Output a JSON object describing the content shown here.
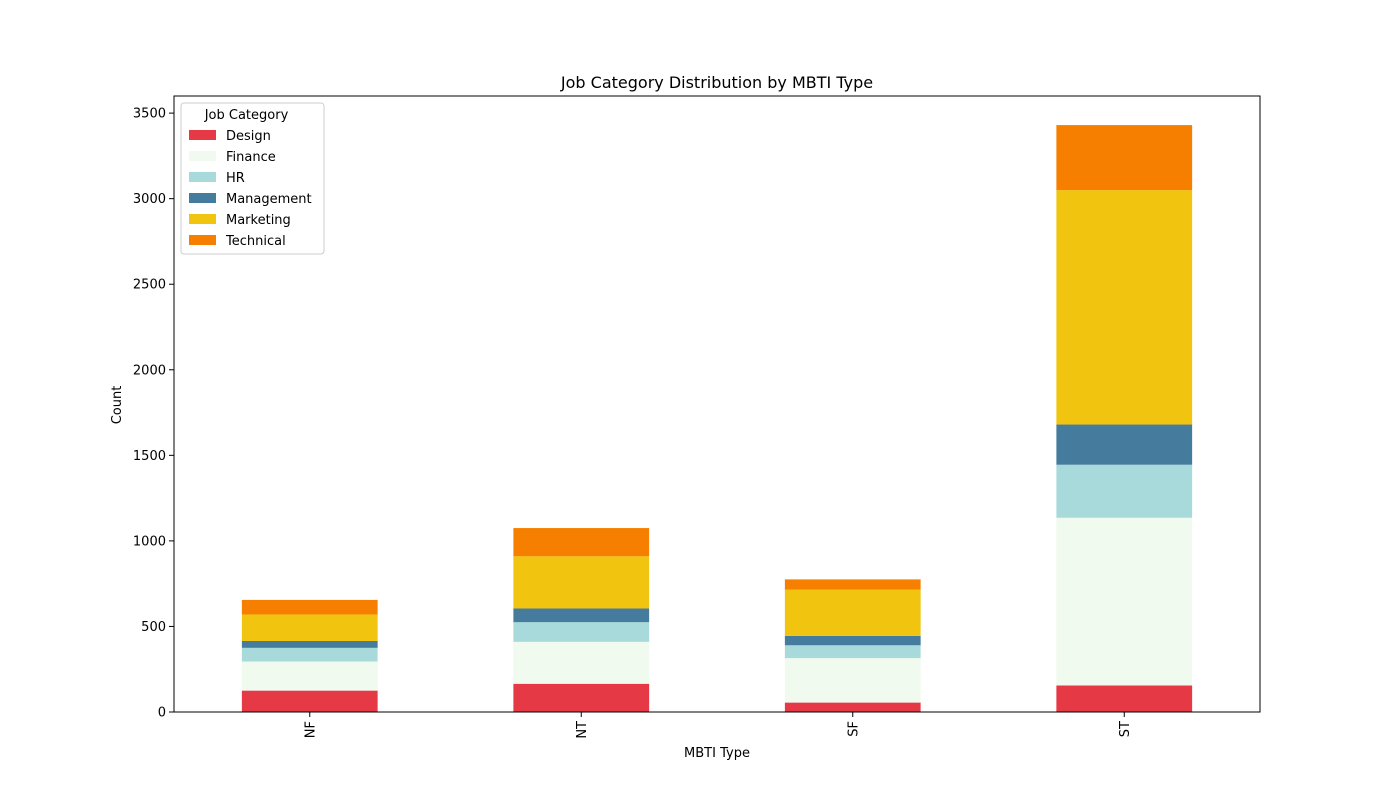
{
  "chart_data": {
    "type": "bar",
    "stacked": true,
    "title": "Job Category Distribution by MBTI Type",
    "xlabel": "MBTI Type",
    "ylabel": "Count",
    "categories": [
      "NF",
      "NT",
      "SF",
      "ST"
    ],
    "ylim": [
      0,
      3600
    ],
    "yticks": [
      0,
      500,
      1000,
      1500,
      2000,
      2500,
      3000,
      3500
    ],
    "grid": false,
    "legend": {
      "title": "Job Category",
      "placement": "top-left"
    },
    "series": [
      {
        "name": "Design",
        "color": "#e63946",
        "values": [
          125,
          165,
          55,
          155
        ]
      },
      {
        "name": "Finance",
        "color": "#f1faee",
        "values": [
          170,
          245,
          260,
          980
        ]
      },
      {
        "name": "HR",
        "color": "#a8dadc",
        "values": [
          80,
          115,
          75,
          310
        ]
      },
      {
        "name": "Management",
        "color": "#457b9d",
        "values": [
          40,
          80,
          55,
          235
        ]
      },
      {
        "name": "Marketing",
        "color": "#f1c40f",
        "values": [
          155,
          305,
          270,
          1370
        ]
      },
      {
        "name": "Technical",
        "color": "#f77f00",
        "values": [
          85,
          165,
          60,
          380
        ]
      }
    ]
  }
}
